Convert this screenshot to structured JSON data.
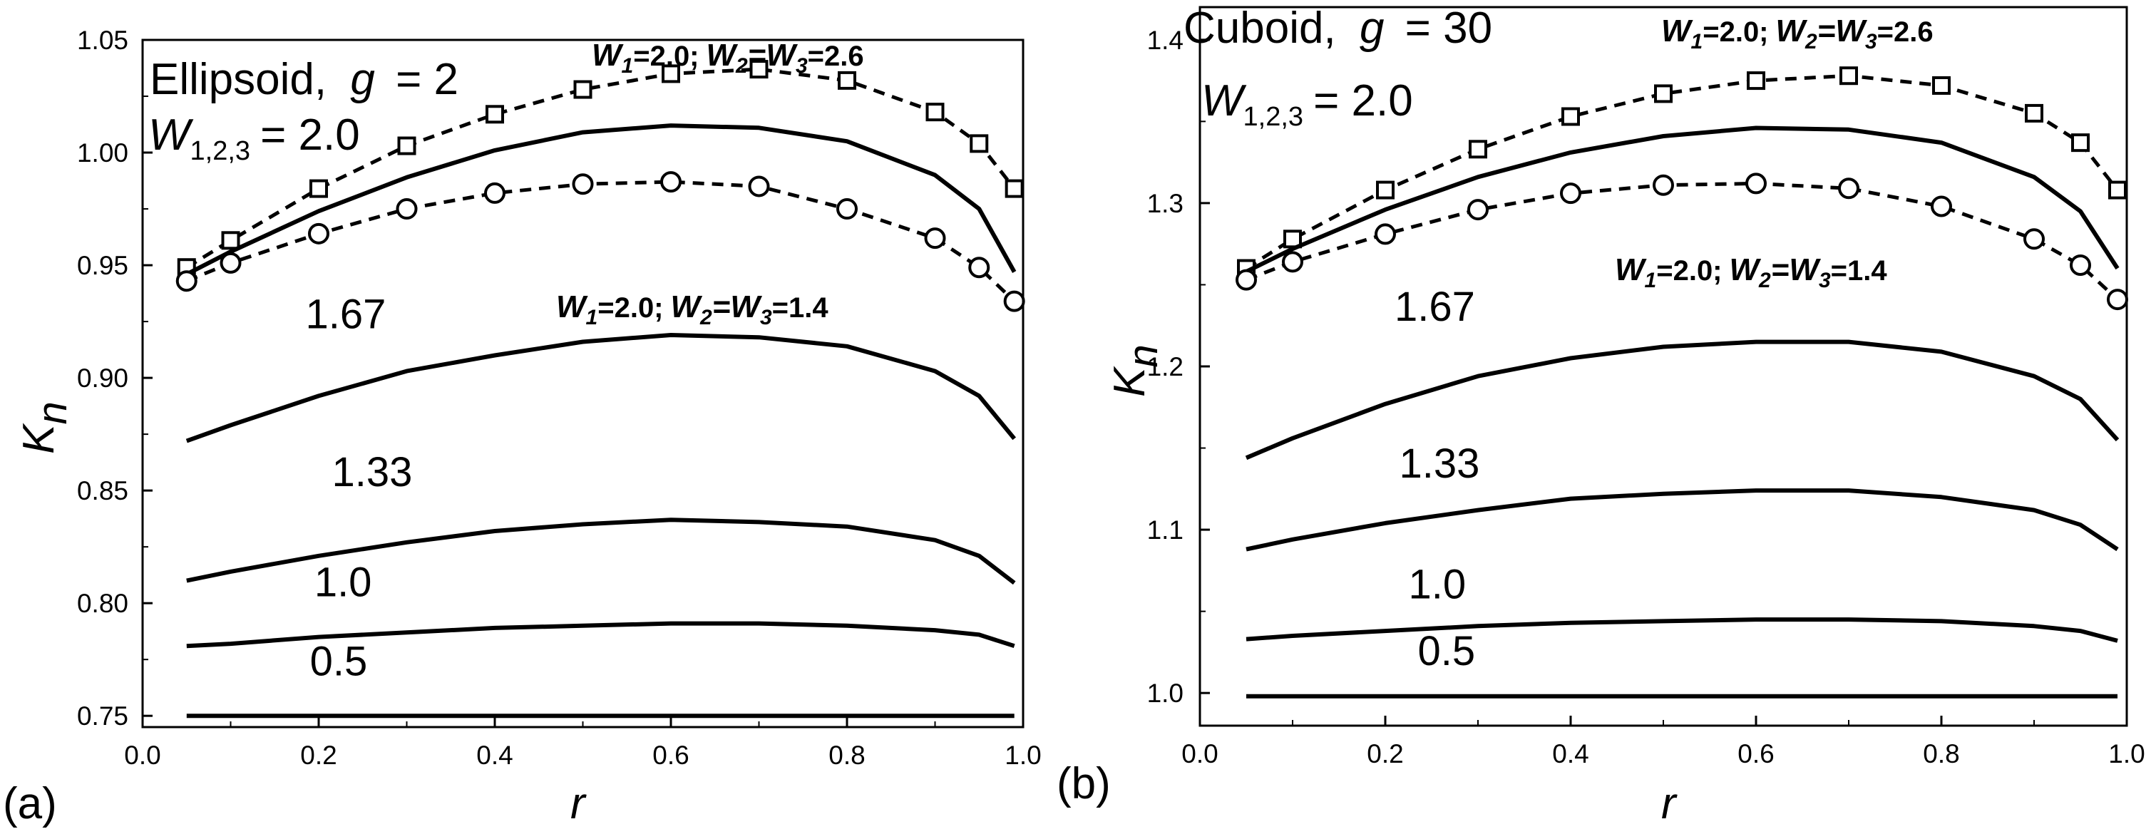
{
  "chart_data": [
    {
      "panel_label": "(a)",
      "type": "line",
      "title_shape": "Ellipsoid,",
      "title_g": "g",
      "title_g_value": "= 2",
      "w_main": "W",
      "w_main_sub": "1,2,3",
      "w_main_value": "= 2.0",
      "xlabel": "r",
      "ylabel": "K",
      "ylabel_sub": "n",
      "xlim": [
        0.0,
        1.0
      ],
      "ylim": [
        0.745,
        1.05
      ],
      "x_ticks": [
        "0.0",
        "0.2",
        "0.4",
        "0.6",
        "0.8",
        "1.0"
      ],
      "y_ticks": [
        "0.75",
        "0.80",
        "0.85",
        "0.90",
        "0.95",
        "1.00",
        "1.05"
      ],
      "y_tick_values": [
        0.75,
        0.8,
        0.85,
        0.9,
        0.95,
        1.0,
        1.05
      ],
      "series": [
        {
          "name": "W1=2.0; W2=W3=2.6",
          "style": "dashed-square",
          "x": [
            0.05,
            0.1,
            0.2,
            0.3,
            0.4,
            0.5,
            0.6,
            0.7,
            0.8,
            0.9,
            0.95,
            0.99
          ],
          "values": [
            0.949,
            0.961,
            0.984,
            1.003,
            1.017,
            1.028,
            1.035,
            1.037,
            1.032,
            1.018,
            1.004,
            0.984
          ]
        },
        {
          "name": "2.0",
          "style": "solid",
          "x": [
            0.05,
            0.1,
            0.2,
            0.3,
            0.4,
            0.5,
            0.6,
            0.7,
            0.8,
            0.9,
            0.95,
            0.99
          ],
          "values": [
            0.946,
            0.956,
            0.974,
            0.989,
            1.001,
            1.009,
            1.012,
            1.011,
            1.005,
            0.99,
            0.975,
            0.947
          ]
        },
        {
          "name": "W1=2.0; W2=W3=1.4",
          "style": "dashed-circle",
          "x": [
            0.05,
            0.1,
            0.2,
            0.3,
            0.4,
            0.5,
            0.6,
            0.7,
            0.8,
            0.9,
            0.95,
            0.99
          ],
          "values": [
            0.943,
            0.951,
            0.964,
            0.975,
            0.982,
            0.986,
            0.987,
            0.985,
            0.975,
            0.962,
            0.949,
            0.934
          ]
        },
        {
          "name": "1.67",
          "style": "solid",
          "x": [
            0.05,
            0.1,
            0.2,
            0.3,
            0.4,
            0.5,
            0.6,
            0.7,
            0.8,
            0.9,
            0.95,
            0.99
          ],
          "values": [
            0.872,
            0.879,
            0.892,
            0.903,
            0.91,
            0.916,
            0.919,
            0.918,
            0.914,
            0.903,
            0.892,
            0.873
          ]
        },
        {
          "name": "1.33",
          "style": "solid",
          "x": [
            0.05,
            0.1,
            0.2,
            0.3,
            0.4,
            0.5,
            0.6,
            0.7,
            0.8,
            0.9,
            0.95,
            0.99
          ],
          "values": [
            0.81,
            0.814,
            0.821,
            0.827,
            0.832,
            0.835,
            0.837,
            0.836,
            0.834,
            0.828,
            0.821,
            0.809
          ]
        },
        {
          "name": "1.0",
          "style": "solid",
          "x": [
            0.05,
            0.1,
            0.2,
            0.3,
            0.4,
            0.5,
            0.6,
            0.7,
            0.8,
            0.9,
            0.95,
            0.99
          ],
          "values": [
            0.781,
            0.782,
            0.785,
            0.787,
            0.789,
            0.79,
            0.791,
            0.791,
            0.79,
            0.788,
            0.786,
            0.781
          ]
        },
        {
          "name": "0.5",
          "style": "solid",
          "x": [
            0.05,
            0.99
          ],
          "values": [
            0.75,
            0.75
          ]
        }
      ],
      "annotations": [
        {
          "text": "1.67",
          "x": 0.185,
          "y": 0.922
        },
        {
          "text": "1.33",
          "x": 0.215,
          "y": 0.852
        },
        {
          "text": "1.0",
          "x": 0.195,
          "y": 0.803
        },
        {
          "text": "0.5",
          "x": 0.19,
          "y": 0.768
        }
      ],
      "legend_upper": {
        "W1": "W",
        "s1": "1",
        "v1": "=2.0;",
        "W2": "W",
        "s2": "2",
        "eq": "=W",
        "s3": "3",
        "v3": "=2.6"
      },
      "legend_lower": {
        "W1": "W",
        "s1": "1",
        "v1": "=2.0;",
        "W2": "W",
        "s2": "2",
        "eq": "=W",
        "s3": "3",
        "v3": "=1.4"
      }
    },
    {
      "panel_label": "(b)",
      "type": "line",
      "title_shape": "Cuboid,",
      "title_g": "g",
      "title_g_value": "= 30",
      "w_main": "W",
      "w_main_sub": "1,2,3",
      "w_main_value": "= 2.0",
      "xlabel": "r",
      "ylabel": "K",
      "ylabel_sub": "n",
      "xlim": [
        0.0,
        1.0
      ],
      "ylim": [
        0.98,
        1.42
      ],
      "x_ticks": [
        "0.0",
        "0.2",
        "0.4",
        "0.6",
        "0.8",
        "1.0"
      ],
      "y_ticks": [
        "1.0",
        "1.1",
        "1.2",
        "1.3",
        "1.4"
      ],
      "y_tick_values": [
        1.0,
        1.1,
        1.2,
        1.3,
        1.4
      ],
      "series": [
        {
          "name": "W1=2.0; W2=W3=2.6",
          "style": "dashed-square",
          "x": [
            0.05,
            0.1,
            0.2,
            0.3,
            0.4,
            0.5,
            0.6,
            0.7,
            0.8,
            0.9,
            0.95,
            0.99
          ],
          "values": [
            1.26,
            1.278,
            1.308,
            1.333,
            1.353,
            1.367,
            1.375,
            1.378,
            1.372,
            1.355,
            1.337,
            1.308
          ]
        },
        {
          "name": "2.0",
          "style": "solid",
          "x": [
            0.05,
            0.1,
            0.2,
            0.3,
            0.4,
            0.5,
            0.6,
            0.7,
            0.8,
            0.9,
            0.95,
            0.99
          ],
          "values": [
            1.258,
            1.272,
            1.296,
            1.316,
            1.331,
            1.341,
            1.346,
            1.345,
            1.337,
            1.316,
            1.295,
            1.26
          ]
        },
        {
          "name": "W1=2.0; W2=W3=1.4",
          "style": "dashed-circle",
          "x": [
            0.05,
            0.1,
            0.2,
            0.3,
            0.4,
            0.5,
            0.6,
            0.7,
            0.8,
            0.9,
            0.95,
            0.99
          ],
          "values": [
            1.253,
            1.264,
            1.281,
            1.296,
            1.306,
            1.311,
            1.312,
            1.309,
            1.298,
            1.278,
            1.262,
            1.241
          ]
        },
        {
          "name": "1.67",
          "style": "solid",
          "x": [
            0.05,
            0.1,
            0.2,
            0.3,
            0.4,
            0.5,
            0.6,
            0.7,
            0.8,
            0.9,
            0.95,
            0.99
          ],
          "values": [
            1.144,
            1.156,
            1.177,
            1.194,
            1.205,
            1.212,
            1.215,
            1.215,
            1.209,
            1.194,
            1.18,
            1.155
          ]
        },
        {
          "name": "1.33",
          "style": "solid",
          "x": [
            0.05,
            0.1,
            0.2,
            0.3,
            0.4,
            0.5,
            0.6,
            0.7,
            0.8,
            0.9,
            0.95,
            0.99
          ],
          "values": [
            1.088,
            1.094,
            1.104,
            1.112,
            1.119,
            1.122,
            1.124,
            1.124,
            1.12,
            1.112,
            1.103,
            1.088
          ]
        },
        {
          "name": "1.0",
          "style": "solid",
          "x": [
            0.05,
            0.1,
            0.2,
            0.3,
            0.4,
            0.5,
            0.6,
            0.7,
            0.8,
            0.9,
            0.95,
            0.99
          ],
          "values": [
            1.033,
            1.035,
            1.038,
            1.041,
            1.043,
            1.044,
            1.045,
            1.045,
            1.044,
            1.041,
            1.038,
            1.032
          ]
        },
        {
          "name": "0.5",
          "style": "solid",
          "x": [
            0.05,
            0.99
          ],
          "values": [
            0.998,
            0.998
          ]
        }
      ],
      "annotations": [
        {
          "text": "1.67",
          "x": 0.21,
          "y": 1.228
        },
        {
          "text": "1.33",
          "x": 0.215,
          "y": 1.132
        },
        {
          "text": "1.0",
          "x": 0.225,
          "y": 1.058
        },
        {
          "text": "0.5",
          "x": 0.235,
          "y": 1.017
        }
      ],
      "legend_upper": {
        "W1": "W",
        "s1": "1",
        "v1": "=2.0;",
        "W2": "W",
        "s2": "2",
        "eq": "=W",
        "s3": "3",
        "v3": "=2.6"
      },
      "legend_lower": {
        "W1": "W",
        "s1": "1",
        "v1": "=2.0;",
        "W2": "W",
        "s2": "2",
        "eq": "=W",
        "s3": "3",
        "v3": "=1.4"
      }
    }
  ]
}
